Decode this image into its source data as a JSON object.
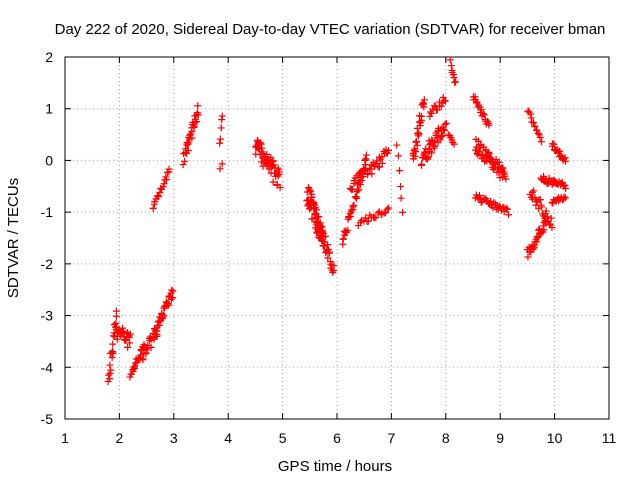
{
  "chart_data": {
    "type": "scatter",
    "title": "Day 222 of 2020, Sidereal Day-to-day VTEC variation (SDTVAR) for receiver bman",
    "xlabel": "GPS time / hours",
    "ylabel": "SDTVAR / TECUs",
    "xlim": [
      1,
      11
    ],
    "ylim": [
      -5,
      2
    ],
    "xticks": [
      "1",
      "2",
      "3",
      "4",
      "5",
      "6",
      "7",
      "8",
      "9",
      "10",
      "11"
    ],
    "yticks": [
      "-5",
      "-4",
      "-3",
      "-2",
      "-1",
      "0",
      "1",
      "2"
    ],
    "grid": true,
    "marker": "+",
    "color": "#ff0000",
    "segments": [
      {
        "t0": 1.8,
        "t1": 1.95,
        "v0": -4.2,
        "v1": -3.0,
        "spread": 0.35,
        "n": 22
      },
      {
        "t0": 1.95,
        "t1": 2.2,
        "v0": -3.3,
        "v1": -3.5,
        "spread": 0.3,
        "n": 26
      },
      {
        "t0": 2.2,
        "t1": 2.45,
        "v0": -4.15,
        "v1": -3.6,
        "spread": 0.12,
        "n": 20
      },
      {
        "t0": 2.4,
        "t1": 2.7,
        "v0": -3.8,
        "v1": -3.3,
        "spread": 0.25,
        "n": 24
      },
      {
        "t0": 2.65,
        "t1": 2.98,
        "v0": -3.3,
        "v1": -2.55,
        "spread": 0.18,
        "n": 34
      },
      {
        "t0": 2.62,
        "t1": 2.92,
        "v0": -0.9,
        "v1": -0.2,
        "spread": 0.1,
        "n": 18
      },
      {
        "t0": 3.18,
        "t1": 3.45,
        "v0": 0.0,
        "v1": 1.0,
        "spread": 0.25,
        "n": 30
      },
      {
        "t0": 3.85,
        "t1": 3.9,
        "v0": 0.3,
        "v1": 0.9,
        "spread": 0.08,
        "n": 5
      },
      {
        "t0": 3.86,
        "t1": 3.88,
        "v0": -0.15,
        "v1": -0.05,
        "spread": 0.04,
        "n": 2
      },
      {
        "t0": 4.5,
        "t1": 4.95,
        "v0": 0.3,
        "v1": -0.4,
        "spread": 0.4,
        "n": 55
      },
      {
        "t0": 5.45,
        "t1": 5.75,
        "v0": -0.6,
        "v1": -1.6,
        "spread": 0.45,
        "n": 60
      },
      {
        "t0": 5.6,
        "t1": 5.95,
        "v0": -1.0,
        "v1": -2.15,
        "spread": 0.3,
        "n": 35
      },
      {
        "t0": 6.1,
        "t1": 6.55,
        "v0": -1.6,
        "v1": 0.1,
        "spread": 0.2,
        "n": 40
      },
      {
        "t0": 6.25,
        "t1": 6.95,
        "v0": -0.5,
        "v1": 0.15,
        "spread": 0.25,
        "n": 40
      },
      {
        "t0": 6.4,
        "t1": 6.95,
        "v0": -1.2,
        "v1": -0.95,
        "spread": 0.12,
        "n": 20
      },
      {
        "t0": 7.1,
        "t1": 7.2,
        "v0": 0.3,
        "v1": -1.0,
        "spread": 0.1,
        "n": 6
      },
      {
        "t0": 7.4,
        "t1": 7.6,
        "v0": 0.0,
        "v1": 1.2,
        "spread": 0.25,
        "n": 30
      },
      {
        "t0": 7.55,
        "t1": 8.0,
        "v0": 0.0,
        "v1": 0.7,
        "spread": 0.3,
        "n": 45
      },
      {
        "t0": 7.7,
        "t1": 8.0,
        "v0": 0.9,
        "v1": 1.2,
        "spread": 0.15,
        "n": 15
      },
      {
        "t0": 8.08,
        "t1": 8.18,
        "v0": 1.9,
        "v1": 1.5,
        "spread": 0.1,
        "n": 8
      },
      {
        "t0": 8.05,
        "t1": 8.15,
        "v0": 0.5,
        "v1": 0.3,
        "spread": 0.1,
        "n": 6
      },
      {
        "t0": 8.5,
        "t1": 8.8,
        "v0": 1.25,
        "v1": 0.65,
        "spread": 0.1,
        "n": 20
      },
      {
        "t0": 8.55,
        "t1": 9.1,
        "v0": 0.3,
        "v1": -0.3,
        "spread": 0.3,
        "n": 60
      },
      {
        "t0": 8.55,
        "t1": 9.15,
        "v0": -0.7,
        "v1": -1.0,
        "spread": 0.12,
        "n": 35
      },
      {
        "t0": 9.5,
        "t1": 9.75,
        "v0": 1.0,
        "v1": 0.4,
        "spread": 0.1,
        "n": 15
      },
      {
        "t0": 9.5,
        "t1": 9.85,
        "v0": -1.8,
        "v1": -1.2,
        "spread": 0.2,
        "n": 30
      },
      {
        "t0": 9.55,
        "t1": 9.95,
        "v0": -0.6,
        "v1": -1.2,
        "spread": 0.25,
        "n": 25
      },
      {
        "t0": 9.75,
        "t1": 10.2,
        "v0": -0.35,
        "v1": -0.5,
        "spread": 0.12,
        "n": 35
      },
      {
        "t0": 9.95,
        "t1": 10.2,
        "v0": 0.3,
        "v1": 0.0,
        "spread": 0.1,
        "n": 18
      },
      {
        "t0": 9.95,
        "t1": 10.2,
        "v0": -0.8,
        "v1": -0.7,
        "spread": 0.08,
        "n": 14
      }
    ]
  }
}
